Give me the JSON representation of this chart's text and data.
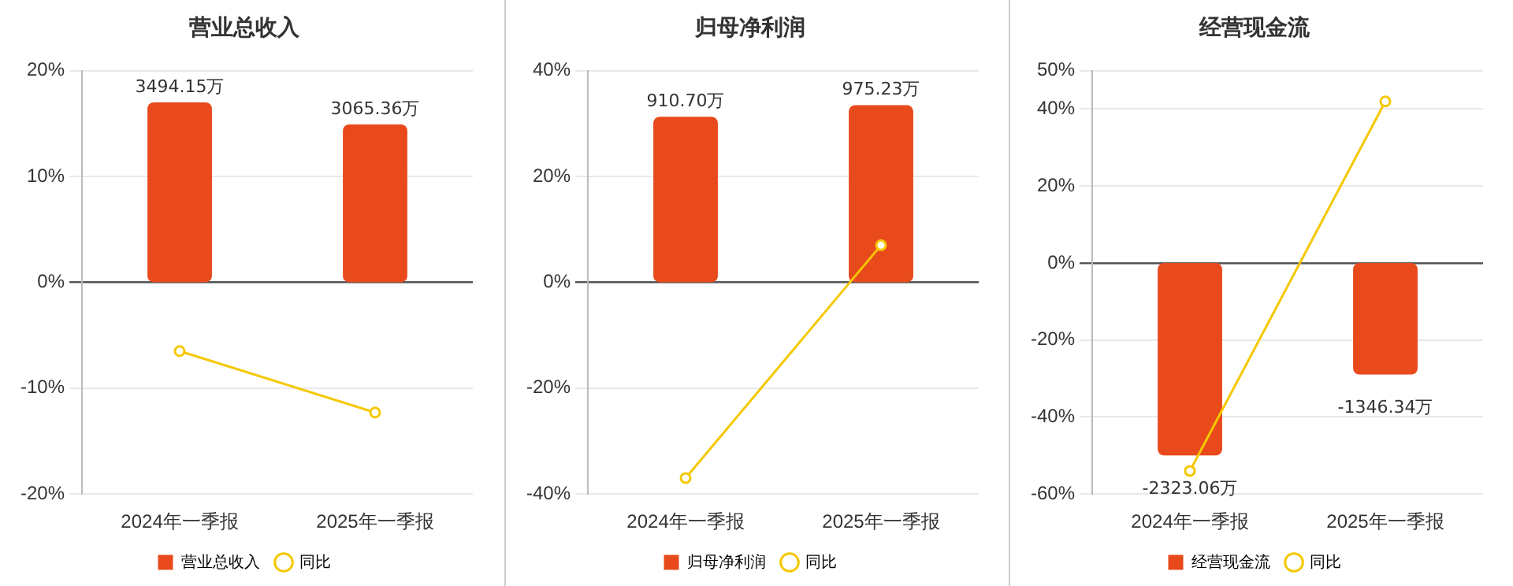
{
  "chart_data": [
    {
      "type": "bar",
      "title": "营业总收入",
      "categories": [
        "2024年一季报",
        "2025年一季报"
      ],
      "ylim": [
        -20,
        20
      ],
      "yticks": [
        {
          "value": -20,
          "label": "-20%"
        },
        {
          "value": -10,
          "label": "-10%"
        },
        {
          "value": 0,
          "label": "0%"
        },
        {
          "value": 10,
          "label": "10%"
        },
        {
          "value": 20,
          "label": "20%"
        }
      ],
      "y2lim": [
        -4110,
        4110
      ],
      "grid": "y",
      "legend": "bottom",
      "marker": "circle",
      "series": [
        {
          "name": "营业总收入",
          "type": "bar",
          "axis": "y2",
          "color": "#e84a1c",
          "values": [
            3494.15,
            3065.36
          ],
          "value_labels": [
            "3494.15万",
            "3065.36万"
          ]
        },
        {
          "name": "同比",
          "type": "line",
          "color": "#f5c800",
          "values": [
            -6.5,
            -12.3
          ]
        }
      ]
    },
    {
      "type": "bar",
      "title": "归母净利润",
      "categories": [
        "2024年一季报",
        "2025年一季报"
      ],
      "ylim": [
        -40,
        40
      ],
      "yticks": [
        {
          "value": -40,
          "label": "-40%"
        },
        {
          "value": -20,
          "label": "-20%"
        },
        {
          "value": 0,
          "label": "0%"
        },
        {
          "value": 20,
          "label": "20%"
        },
        {
          "value": 40,
          "label": "40%"
        }
      ],
      "y2lim": [
        -1165,
        1165
      ],
      "grid": "y",
      "legend": "bottom",
      "marker": "circle",
      "series": [
        {
          "name": "归母净利润",
          "type": "bar",
          "axis": "y2",
          "color": "#e84a1c",
          "values": [
            910.7,
            975.23
          ],
          "value_labels": [
            "910.70万",
            "975.23万"
          ]
        },
        {
          "name": "同比",
          "type": "line",
          "color": "#f5c800",
          "values": [
            -37,
            7
          ]
        }
      ]
    },
    {
      "type": "bar",
      "title": "经营现金流",
      "categories": [
        "2024年一季报",
        "2025年一季报"
      ],
      "ylim": [
        -60,
        50
      ],
      "yticks": [
        {
          "value": -60,
          "label": "-60%"
        },
        {
          "value": -40,
          "label": "-40%"
        },
        {
          "value": -20,
          "label": "-20%"
        },
        {
          "value": 0,
          "label": "0%"
        },
        {
          "value": 20,
          "label": "20%"
        },
        {
          "value": 40,
          "label": "40%"
        },
        {
          "value": 50,
          "label": "50%"
        }
      ],
      "y2lim": [
        -2788,
        2323
      ],
      "grid": "y",
      "legend": "bottom",
      "marker": "circle",
      "series": [
        {
          "name": "经营现金流",
          "type": "bar",
          "axis": "y2",
          "color": "#e84a1c",
          "values": [
            -2323.06,
            -1346.34
          ],
          "value_labels": [
            "-2323.06万",
            "-1346.34万"
          ]
        },
        {
          "name": "同比",
          "type": "line",
          "color": "#f5c800",
          "values": [
            -54,
            42
          ]
        }
      ]
    }
  ]
}
